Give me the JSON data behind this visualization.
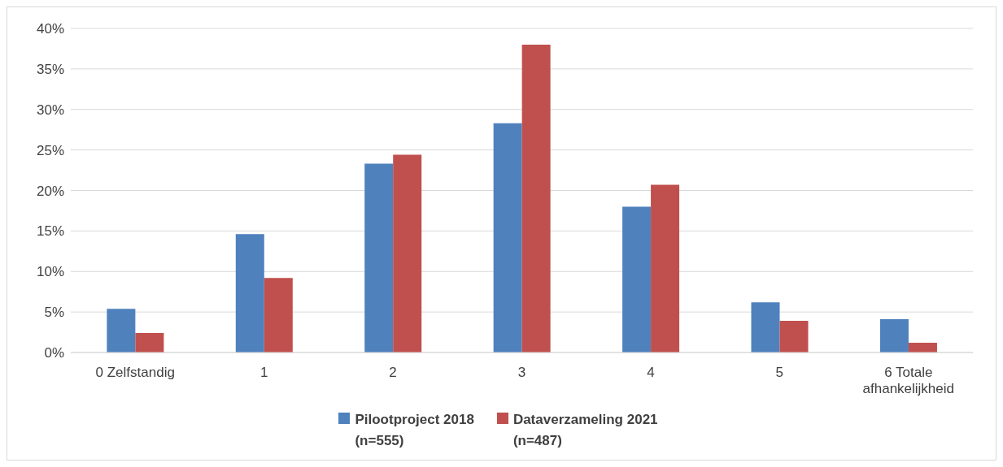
{
  "chart_data": {
    "type": "bar",
    "categories": [
      "0 Zelfstandig",
      "1",
      "2",
      "3",
      "4",
      "5",
      "6 Totale afhankelijkheid"
    ],
    "series": [
      {
        "name": "Pilootproject 2018 (n=555)",
        "color": "#4f81bd",
        "values": [
          5.4,
          14.6,
          23.3,
          28.3,
          18.0,
          6.2,
          4.1
        ]
      },
      {
        "name": "Dataverzameling 2021 (n=487)",
        "color": "#c0504d",
        "values": [
          2.4,
          9.2,
          24.4,
          38.0,
          20.7,
          3.9,
          1.2
        ]
      }
    ],
    "ylim": [
      0,
      40
    ],
    "yticks": [
      {
        "value": 0,
        "label": "0%"
      },
      {
        "value": 5,
        "label": "5%"
      },
      {
        "value": 10,
        "label": "10%"
      },
      {
        "value": 15,
        "label": "15%"
      },
      {
        "value": 20,
        "label": "20%"
      },
      {
        "value": 25,
        "label": "25%"
      },
      {
        "value": 30,
        "label": "30%"
      },
      {
        "value": 35,
        "label": "35%"
      },
      {
        "value": 40,
        "label": "40%"
      }
    ],
    "grid": "y",
    "legend": "bottom"
  }
}
